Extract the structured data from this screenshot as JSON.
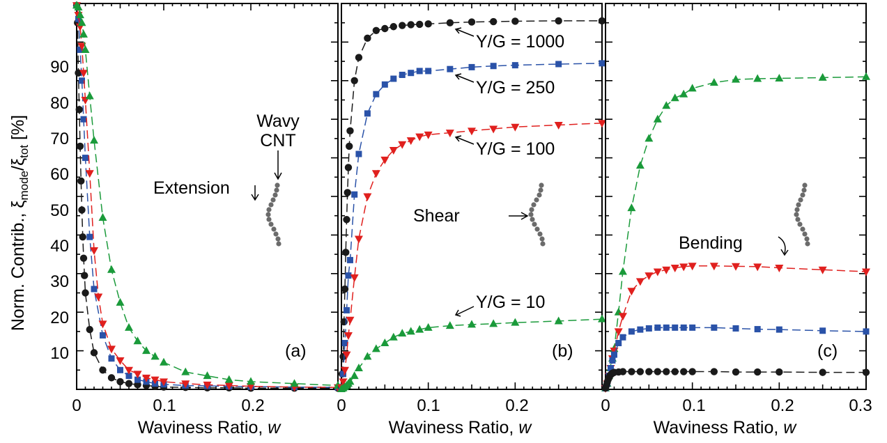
{
  "ylabel": "Norm. Contrib., ξ_mode/ξ_tot [%]",
  "ylabel_parts": {
    "main": "Norm. Contrib., ξ",
    "sub1": "mode",
    "slash": "/ξ",
    "sub2": "tot",
    "unit": " [%]"
  },
  "xlabel_main": "Waviness Ratio, ",
  "xlabel_var": "w",
  "colors": {
    "Y/G = 1000": "#1a1a1a",
    "Y/G = 250": "#2a52a8",
    "Y/G = 100": "#e0201e",
    "Y/G = 10": "#1a9a3a"
  },
  "chart_data": [
    {
      "type": "line",
      "panel_label": "(a)",
      "mode": "Extension",
      "xlim": [
        0,
        0.3
      ],
      "ylim": [
        0,
        100
      ],
      "xticks": [
        "0",
        "0.1",
        "0.2"
      ],
      "yticks": [
        "10",
        "20",
        "30",
        "40",
        "50",
        "60",
        "70",
        "80",
        "90"
      ],
      "annotations": [
        "Extension",
        "Wavy",
        "CNT"
      ],
      "series": [
        {
          "name": "Y/G = 1000",
          "marker": "circle",
          "x": [
            0,
            0.001,
            0.002,
            0.003,
            0.004,
            0.005,
            0.006,
            0.007,
            0.008,
            0.009,
            0.01,
            0.015,
            0.02,
            0.03,
            0.04,
            0.05,
            0.06,
            0.07,
            0.08,
            0.09,
            0.1,
            0.125,
            0.15,
            0.175,
            0.2,
            0.25,
            0.3
          ],
          "y": [
            99.5,
            95,
            82,
            72.5,
            63,
            54,
            46.5,
            39.5,
            34,
            29.5,
            25,
            15.5,
            9.5,
            5,
            3,
            2,
            1.5,
            1.2,
            1,
            0.8,
            0.6,
            0.5,
            0.4,
            0.4,
            0.3,
            0.3,
            0.3
          ]
        },
        {
          "name": "Y/G = 250",
          "marker": "square",
          "x": [
            0,
            0.002,
            0.004,
            0.006,
            0.008,
            0.01,
            0.015,
            0.02,
            0.03,
            0.04,
            0.05,
            0.06,
            0.07,
            0.08,
            0.09,
            0.1,
            0.125,
            0.15,
            0.175,
            0.2,
            0.25,
            0.3
          ],
          "y": [
            99.5,
            96,
            88,
            80,
            70,
            60,
            39.5,
            26,
            14,
            8,
            5,
            3.5,
            2.5,
            2,
            1.5,
            1.3,
            1,
            0.9,
            0.8,
            0.7,
            0.6,
            0.5
          ]
        },
        {
          "name": "Y/G = 100",
          "marker": "triangle-down",
          "x": [
            0,
            0.002,
            0.004,
            0.006,
            0.008,
            0.01,
            0.015,
            0.02,
            0.025,
            0.03,
            0.04,
            0.05,
            0.06,
            0.07,
            0.08,
            0.09,
            0.1,
            0.125,
            0.15,
            0.175,
            0.2,
            0.25,
            0.3
          ],
          "y": [
            99.5,
            97,
            94,
            89,
            82,
            75,
            56,
            36,
            24,
            17,
            10.5,
            7.5,
            5,
            4,
            3,
            2.5,
            2,
            1.5,
            1.2,
            1,
            0.8,
            0.6,
            0.5
          ]
        },
        {
          "name": "Y/G = 10",
          "marker": "triangle-up",
          "x": [
            0,
            0.002,
            0.004,
            0.006,
            0.008,
            0.01,
            0.015,
            0.02,
            0.03,
            0.04,
            0.05,
            0.06,
            0.07,
            0.08,
            0.09,
            0.1,
            0.125,
            0.15,
            0.175,
            0.2,
            0.25,
            0.3
          ],
          "y": [
            99.5,
            99,
            97,
            95,
            92,
            88,
            76,
            64.5,
            44.5,
            31,
            22.5,
            16,
            12.5,
            10,
            8.5,
            7,
            4.5,
            3.5,
            2.5,
            2,
            1.5,
            1
          ]
        }
      ]
    },
    {
      "type": "line",
      "panel_label": "(b)",
      "mode": "Shear",
      "xlim": [
        0,
        0.3
      ],
      "ylim": [
        0,
        100
      ],
      "xticks": [
        "0",
        "0.1",
        "0.2"
      ],
      "annotations": [
        "Shear",
        "Y/G = 1000",
        "Y/G = 250",
        "Y/G = 100",
        "Y/G = 10"
      ],
      "series": [
        {
          "name": "Y/G = 1000",
          "marker": "circle",
          "x": [
            0,
            0.001,
            0.002,
            0.003,
            0.004,
            0.005,
            0.006,
            0.007,
            0.008,
            0.009,
            0.01,
            0.015,
            0.02,
            0.03,
            0.04,
            0.05,
            0.06,
            0.07,
            0.08,
            0.09,
            0.1,
            0.125,
            0.15,
            0.175,
            0.2,
            0.25,
            0.3
          ],
          "y": [
            0.5,
            4,
            8.5,
            17.5,
            26,
            35.5,
            44,
            51,
            57.5,
            63,
            67,
            80,
            86,
            91,
            93,
            93.5,
            94,
            94.3,
            94.5,
            94.6,
            94.7,
            95,
            95.2,
            95.3,
            95.4,
            95.5,
            95.5
          ]
        },
        {
          "name": "Y/G = 250",
          "marker": "square",
          "x": [
            0,
            0.002,
            0.004,
            0.006,
            0.008,
            0.01,
            0.015,
            0.02,
            0.03,
            0.04,
            0.05,
            0.06,
            0.07,
            0.08,
            0.09,
            0.1,
            0.125,
            0.15,
            0.175,
            0.2,
            0.25,
            0.3
          ],
          "y": [
            0.5,
            4,
            12,
            20.5,
            29.5,
            33.5,
            50.5,
            61,
            71.5,
            76.5,
            79,
            80.5,
            81.5,
            82,
            82.5,
            82.5,
            83,
            83.5,
            83.8,
            84,
            84.3,
            84.5
          ]
        },
        {
          "name": "Y/G = 100",
          "marker": "triangle-down",
          "x": [
            0,
            0.002,
            0.004,
            0.006,
            0.008,
            0.01,
            0.015,
            0.02,
            0.03,
            0.04,
            0.05,
            0.06,
            0.07,
            0.08,
            0.09,
            0.1,
            0.125,
            0.15,
            0.175,
            0.2,
            0.25,
            0.3
          ],
          "y": [
            0.5,
            2,
            5,
            9,
            14,
            18,
            29,
            39,
            50,
            56,
            59.5,
            62,
            63.5,
            64.5,
            65.5,
            66,
            66.5,
            67,
            67.5,
            68,
            68.5,
            69
          ]
        },
        {
          "name": "Y/G = 10",
          "marker": "triangle-up",
          "x": [
            0,
            0.002,
            0.004,
            0.006,
            0.008,
            0.01,
            0.015,
            0.02,
            0.03,
            0.04,
            0.05,
            0.06,
            0.07,
            0.08,
            0.09,
            0.1,
            0.125,
            0.15,
            0.175,
            0.2,
            0.25,
            0.3
          ],
          "y": [
            0.1,
            0.3,
            0.6,
            1,
            1.5,
            2,
            3.5,
            5.5,
            8.5,
            10.5,
            12,
            13.5,
            14.5,
            15,
            15.5,
            16,
            16.5,
            16.8,
            17,
            17.3,
            17.7,
            18.2
          ]
        }
      ]
    },
    {
      "type": "line",
      "panel_label": "(c)",
      "mode": "Bending",
      "xlim": [
        0,
        0.3
      ],
      "ylim": [
        0,
        100
      ],
      "xticks": [
        "0",
        "0.1",
        "0.2",
        "0.3"
      ],
      "annotations": [
        "Bending"
      ],
      "series": [
        {
          "name": "Y/G = 10",
          "marker": "triangle-up",
          "x": [
            0,
            0.002,
            0.004,
            0.006,
            0.008,
            0.01,
            0.015,
            0.02,
            0.03,
            0.04,
            0.05,
            0.06,
            0.07,
            0.08,
            0.09,
            0.1,
            0.125,
            0.15,
            0.175,
            0.2,
            0.25,
            0.3
          ],
          "y": [
            0.3,
            1.5,
            3.5,
            5.5,
            8,
            10.5,
            20,
            30.5,
            47,
            58,
            65,
            70,
            73.5,
            75.5,
            76.5,
            78,
            79.5,
            80.3,
            80.5,
            80.6,
            80.8,
            81
          ]
        },
        {
          "name": "Y/G = 100",
          "marker": "triangle-down",
          "x": [
            0,
            0.002,
            0.004,
            0.006,
            0.008,
            0.01,
            0.015,
            0.02,
            0.03,
            0.04,
            0.05,
            0.06,
            0.07,
            0.08,
            0.09,
            0.1,
            0.125,
            0.15,
            0.175,
            0.2,
            0.25,
            0.3
          ],
          "y": [
            0.3,
            1.5,
            3.5,
            5.5,
            8,
            10,
            15,
            19,
            25.5,
            28,
            29.5,
            30.5,
            31,
            31.5,
            31.8,
            32,
            32,
            31.9,
            31.8,
            31.5,
            31,
            30.5
          ]
        },
        {
          "name": "Y/G = 250",
          "marker": "square",
          "x": [
            0,
            0.002,
            0.004,
            0.006,
            0.008,
            0.01,
            0.015,
            0.02,
            0.03,
            0.04,
            0.05,
            0.06,
            0.07,
            0.08,
            0.09,
            0.1,
            0.125,
            0.15,
            0.175,
            0.2,
            0.25,
            0.3
          ],
          "y": [
            0.3,
            1.5,
            3.5,
            5.5,
            7.5,
            9,
            12,
            13.5,
            15,
            15.5,
            15.8,
            16,
            16,
            16,
            16,
            16,
            16,
            15.8,
            15.6,
            15.5,
            15.2,
            15
          ]
        },
        {
          "name": "Y/G = 1000",
          "marker": "circle",
          "x": [
            0,
            0.001,
            0.002,
            0.003,
            0.004,
            0.005,
            0.006,
            0.007,
            0.008,
            0.009,
            0.01,
            0.015,
            0.02,
            0.03,
            0.04,
            0.05,
            0.06,
            0.07,
            0.08,
            0.09,
            0.1,
            0.125,
            0.15,
            0.175,
            0.2,
            0.25,
            0.3
          ],
          "y": [
            0.3,
            1,
            1.8,
            2.5,
            3,
            3.5,
            3.8,
            4,
            4.2,
            4.3,
            4.4,
            4.5,
            4.6,
            4.6,
            4.6,
            4.6,
            4.6,
            4.6,
            4.6,
            4.6,
            4.6,
            4.6,
            4.5,
            4.5,
            4.5,
            4.4,
            4.4
          ]
        }
      ]
    }
  ]
}
